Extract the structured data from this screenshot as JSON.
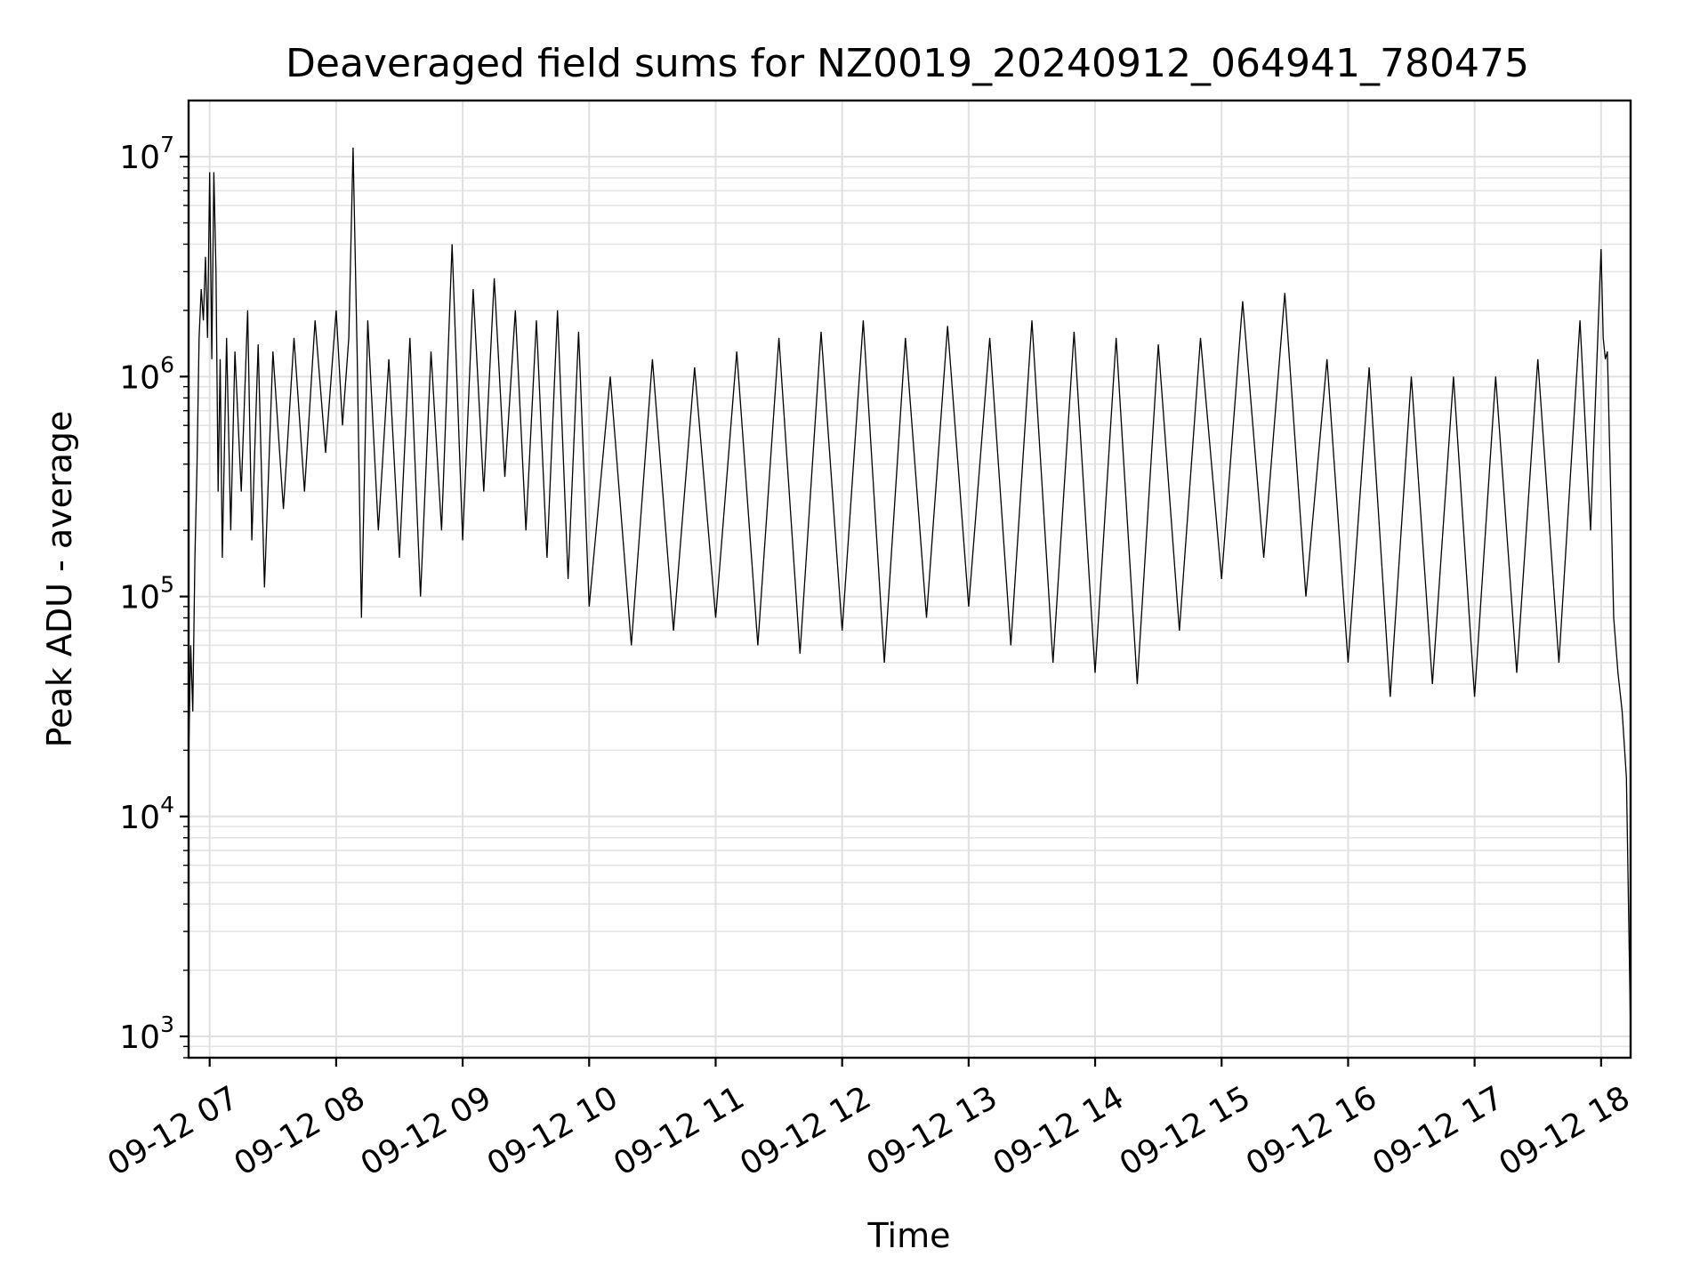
{
  "chart_data": {
    "type": "line",
    "title": "Deaveraged field sums for NZ0019_20240912_064941_780475",
    "xlabel": "Time",
    "ylabel": "Peak ADU - average",
    "yscale": "log",
    "ylim": [
      800,
      18000000
    ],
    "xlim": [
      "2024-09-12 06:50",
      "2024-09-12 18:14"
    ],
    "grid": true,
    "line_color": "#000000",
    "x_ticks": [
      {
        "value": "2024-09-12 07:00",
        "label": "09-12 07"
      },
      {
        "value": "2024-09-12 08:00",
        "label": "09-12 08"
      },
      {
        "value": "2024-09-12 09:00",
        "label": "09-12 09"
      },
      {
        "value": "2024-09-12 10:00",
        "label": "09-12 10"
      },
      {
        "value": "2024-09-12 11:00",
        "label": "09-12 11"
      },
      {
        "value": "2024-09-12 12:00",
        "label": "09-12 12"
      },
      {
        "value": "2024-09-12 13:00",
        "label": "09-12 13"
      },
      {
        "value": "2024-09-12 14:00",
        "label": "09-12 14"
      },
      {
        "value": "2024-09-12 15:00",
        "label": "09-12 15"
      },
      {
        "value": "2024-09-12 16:00",
        "label": "09-12 16"
      },
      {
        "value": "2024-09-12 17:00",
        "label": "09-12 17"
      },
      {
        "value": "2024-09-12 18:00",
        "label": "09-12 18"
      }
    ],
    "y_ticks": [
      {
        "value": 1000,
        "base": "10",
        "exp": "3"
      },
      {
        "value": 10000,
        "base": "10",
        "exp": "4"
      },
      {
        "value": 100000,
        "base": "10",
        "exp": "5"
      },
      {
        "value": 1000000,
        "base": "10",
        "exp": "6"
      },
      {
        "value": 10000000,
        "base": "10",
        "exp": "7"
      }
    ],
    "series": [
      {
        "x": [
          "2024-09-12 06:50",
          "2024-09-12 06:51",
          "2024-09-12 06:52",
          "2024-09-12 06:53",
          "2024-09-12 06:54",
          "2024-09-12 06:55",
          "2024-09-12 06:56",
          "2024-09-12 06:57",
          "2024-09-12 06:58",
          "2024-09-12 06:59",
          "2024-09-12 07:00",
          "2024-09-12 07:01",
          "2024-09-12 07:02",
          "2024-09-12 07:03",
          "2024-09-12 07:04",
          "2024-09-12 07:05",
          "2024-09-12 07:06",
          "2024-09-12 07:08",
          "2024-09-12 07:10",
          "2024-09-12 07:12",
          "2024-09-12 07:15",
          "2024-09-12 07:18",
          "2024-09-12 07:20",
          "2024-09-12 07:23",
          "2024-09-12 07:26",
          "2024-09-12 07:30",
          "2024-09-12 07:35",
          "2024-09-12 07:40",
          "2024-09-12 07:45",
          "2024-09-12 07:50",
          "2024-09-12 07:55",
          "2024-09-12 08:00",
          "2024-09-12 08:03",
          "2024-09-12 08:06",
          "2024-09-12 08:08",
          "2024-09-12 08:10",
          "2024-09-12 08:12",
          "2024-09-12 08:15",
          "2024-09-12 08:20",
          "2024-09-12 08:25",
          "2024-09-12 08:30",
          "2024-09-12 08:35",
          "2024-09-12 08:40",
          "2024-09-12 08:45",
          "2024-09-12 08:50",
          "2024-09-12 08:55",
          "2024-09-12 09:00",
          "2024-09-12 09:05",
          "2024-09-12 09:10",
          "2024-09-12 09:15",
          "2024-09-12 09:20",
          "2024-09-12 09:25",
          "2024-09-12 09:30",
          "2024-09-12 09:35",
          "2024-09-12 09:40",
          "2024-09-12 09:45",
          "2024-09-12 09:50",
          "2024-09-12 09:55",
          "2024-09-12 10:00",
          "2024-09-12 10:10",
          "2024-09-12 10:20",
          "2024-09-12 10:30",
          "2024-09-12 10:40",
          "2024-09-12 10:50",
          "2024-09-12 11:00",
          "2024-09-12 11:10",
          "2024-09-12 11:20",
          "2024-09-12 11:30",
          "2024-09-12 11:40",
          "2024-09-12 11:50",
          "2024-09-12 12:00",
          "2024-09-12 12:10",
          "2024-09-12 12:20",
          "2024-09-12 12:30",
          "2024-09-12 12:40",
          "2024-09-12 12:50",
          "2024-09-12 13:00",
          "2024-09-12 13:10",
          "2024-09-12 13:20",
          "2024-09-12 13:30",
          "2024-09-12 13:40",
          "2024-09-12 13:50",
          "2024-09-12 14:00",
          "2024-09-12 14:10",
          "2024-09-12 14:20",
          "2024-09-12 14:30",
          "2024-09-12 14:40",
          "2024-09-12 14:50",
          "2024-09-12 15:00",
          "2024-09-12 15:10",
          "2024-09-12 15:20",
          "2024-09-12 15:30",
          "2024-09-12 15:40",
          "2024-09-12 15:50",
          "2024-09-12 16:00",
          "2024-09-12 16:10",
          "2024-09-12 16:20",
          "2024-09-12 16:30",
          "2024-09-12 16:40",
          "2024-09-12 16:50",
          "2024-09-12 17:00",
          "2024-09-12 17:10",
          "2024-09-12 17:20",
          "2024-09-12 17:30",
          "2024-09-12 17:40",
          "2024-09-12 17:50",
          "2024-09-12 17:55",
          "2024-09-12 18:00",
          "2024-09-12 18:01",
          "2024-09-12 18:02",
          "2024-09-12 18:03",
          "2024-09-12 18:04",
          "2024-09-12 18:05",
          "2024-09-12 18:06",
          "2024-09-12 18:08",
          "2024-09-12 18:10",
          "2024-09-12 18:12",
          "2024-09-12 18:14"
        ],
        "y": [
          18000,
          60000,
          30000,
          150000,
          400000,
          1500000,
          2500000,
          1800000,
          3500000,
          1500000,
          8500000,
          1200000,
          8500000,
          3000000,
          300000,
          1200000,
          150000,
          1500000,
          200000,
          1300000,
          300000,
          2000000,
          180000,
          1400000,
          110000,
          1300000,
          250000,
          1500000,
          300000,
          1800000,
          450000,
          2000000,
          600000,
          1500000,
          11000000,
          1200000,
          80000,
          1800000,
          200000,
          1200000,
          150000,
          1500000,
          100000,
          1300000,
          200000,
          4000000,
          180000,
          2500000,
          300000,
          2800000,
          350000,
          2000000,
          200000,
          1800000,
          150000,
          2000000,
          120000,
          1600000,
          90000,
          1000000,
          60000,
          1200000,
          70000,
          1100000,
          80000,
          1300000,
          60000,
          1500000,
          55000,
          1600000,
          70000,
          1800000,
          50000,
          1500000,
          80000,
          1700000,
          90000,
          1500000,
          60000,
          1800000,
          50000,
          1600000,
          45000,
          1500000,
          40000,
          1400000,
          70000,
          1500000,
          120000,
          2200000,
          150000,
          2400000,
          100000,
          1200000,
          50000,
          1100000,
          35000,
          1000000,
          40000,
          1000000,
          35000,
          1000000,
          45000,
          1200000,
          50000,
          1800000,
          200000,
          3800000,
          1500000,
          1200000,
          1300000,
          500000,
          200000,
          80000,
          45000,
          30000,
          15000,
          1000
        ]
      }
    ]
  }
}
